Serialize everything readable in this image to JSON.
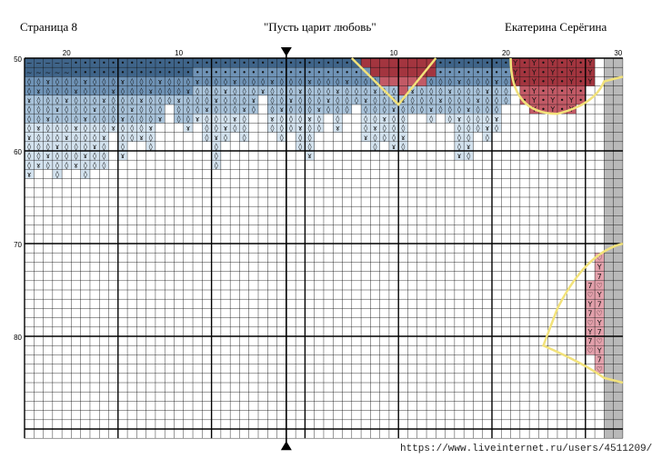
{
  "header": {
    "page_label": "Страница 8",
    "title": "\"Пусть царит любовь\"",
    "author": "Екатерина Серёгина"
  },
  "grid": {
    "col_labels": [
      "20",
      "10",
      "10",
      "20",
      "30"
    ],
    "row_labels": [
      "50",
      "60",
      "70",
      "80"
    ]
  },
  "symbols": {
    "drop": "◊",
    "tilde": "~",
    "dot": "•",
    "hook": "ɤ",
    "heart": "♡",
    "seven": "7",
    "y": "Y"
  },
  "colors": {
    "dark_blue": "#3f6489",
    "mid_blue": "#6f93b6",
    "light_blue": "#a9c3da",
    "pale_blue": "#d3e2ee",
    "dark_red": "#a3353f",
    "mid_red": "#c25a66",
    "pink": "#e3a0ab",
    "gray": "#b9b9b9",
    "outline": "#f2e27a"
  },
  "watermark": "https://www.liveinternet.ru/users/4511209/"
}
